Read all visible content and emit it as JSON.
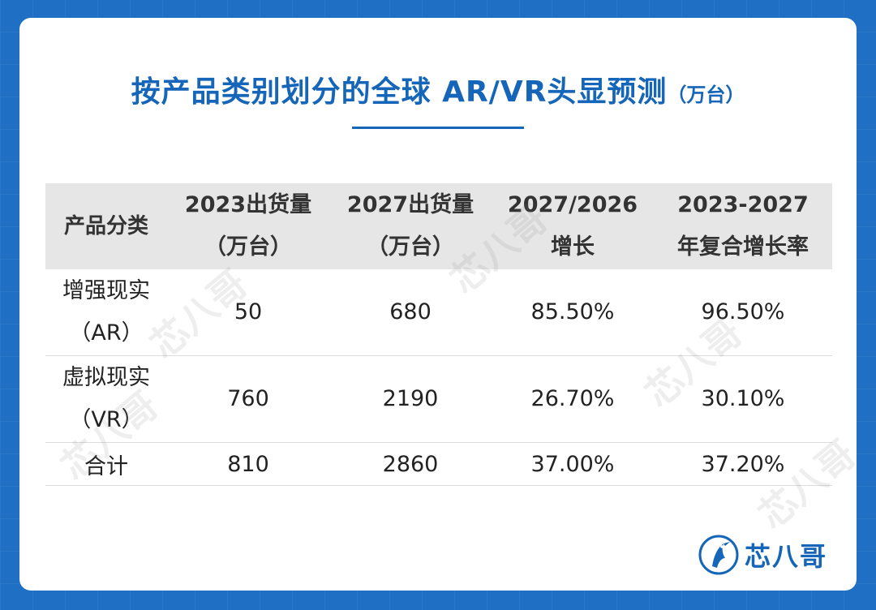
{
  "title": {
    "main": "按产品类别划分的全球 AR/VR头显预测",
    "unit": "（万台）"
  },
  "table": {
    "headers": [
      {
        "line1": "产品分类",
        "line2": ""
      },
      {
        "line1": "2023出货量",
        "line2": "（万台）"
      },
      {
        "line1": "2027出货量",
        "line2": "（万台）"
      },
      {
        "line1": "2027/2026",
        "line2": "增长"
      },
      {
        "line1": "2023-2027",
        "line2": "年复合增长率"
      }
    ],
    "rows": [
      {
        "cat1": "增强现实",
        "cat2": "（AR）",
        "v2023": "50",
        "v2027": "680",
        "growth": "85.50%",
        "cagr": "96.50%"
      },
      {
        "cat1": "虚拟现实",
        "cat2": "（VR）",
        "v2023": "760",
        "v2027": "2190",
        "growth": "26.70%",
        "cagr": "30.10%"
      },
      {
        "cat1": "合计",
        "cat2": "",
        "v2023": "810",
        "v2027": "2860",
        "growth": "37.00%",
        "cagr": "37.20%"
      }
    ]
  },
  "watermark": "芯八哥",
  "logo": {
    "text": "芯八哥",
    "icon": "bird-logo-icon",
    "color": "#1565b8"
  },
  "colors": {
    "background": "#1f6fc4",
    "title": "#1565b8",
    "header_bg": "#e6e6e6"
  }
}
